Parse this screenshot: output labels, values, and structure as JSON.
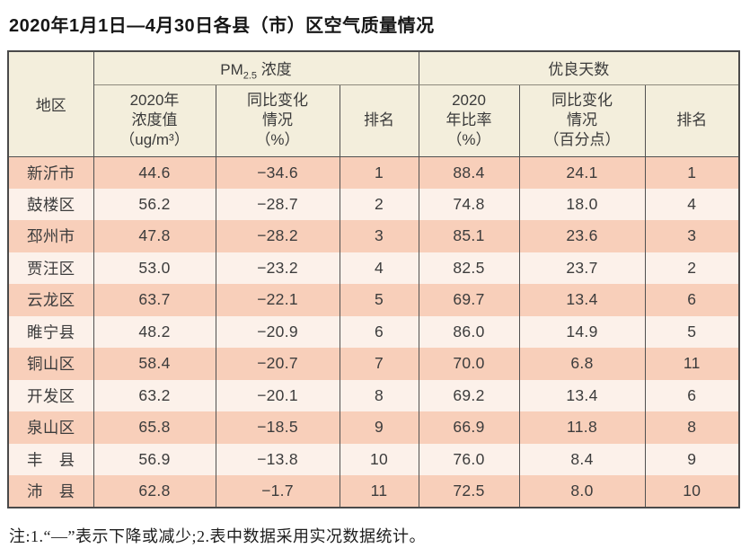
{
  "title": "2020年1月1日—4月30日各县（市）区空气质量情况",
  "table": {
    "header": {
      "region": "地区",
      "pm25_group": {
        "prefix": "PM",
        "sub": "2.5",
        "suffix": " 浓度"
      },
      "good_days_group": "优良天数"
    },
    "sub_headers": {
      "pm_value_l1": "2020年",
      "pm_value_l2": "浓度值",
      "pm_value_l3": "（ug/m³）",
      "pm_change_l1": "同比变化",
      "pm_change_l2": "情况",
      "pm_change_l3": "（%）",
      "pm_rank": "排名",
      "good_ratio_l1": "2020",
      "good_ratio_l2": "年比率",
      "good_ratio_l3": "（%）",
      "good_change_l1": "同比变化",
      "good_change_l2": "情况",
      "good_change_l3": "（百分点）",
      "good_rank": "排名"
    },
    "rows": [
      {
        "region": "新沂市",
        "pm_value": "44.6",
        "pm_change": "−34.6",
        "pm_rank": "1",
        "good_ratio": "88.4",
        "good_change": "24.1",
        "good_rank": "1"
      },
      {
        "region": "鼓楼区",
        "pm_value": "56.2",
        "pm_change": "−28.7",
        "pm_rank": "2",
        "good_ratio": "74.8",
        "good_change": "18.0",
        "good_rank": "4"
      },
      {
        "region": "邳州市",
        "pm_value": "47.8",
        "pm_change": "−28.2",
        "pm_rank": "3",
        "good_ratio": "85.1",
        "good_change": "23.6",
        "good_rank": "3"
      },
      {
        "region": "贾汪区",
        "pm_value": "53.0",
        "pm_change": "−23.2",
        "pm_rank": "4",
        "good_ratio": "82.5",
        "good_change": "23.7",
        "good_rank": "2"
      },
      {
        "region": "云龙区",
        "pm_value": "63.7",
        "pm_change": "−22.1",
        "pm_rank": "5",
        "good_ratio": "69.7",
        "good_change": "13.4",
        "good_rank": "6"
      },
      {
        "region": "睢宁县",
        "pm_value": "48.2",
        "pm_change": "−20.9",
        "pm_rank": "6",
        "good_ratio": "86.0",
        "good_change": "14.9",
        "good_rank": "5"
      },
      {
        "region": "铜山区",
        "pm_value": "58.4",
        "pm_change": "−20.7",
        "pm_rank": "7",
        "good_ratio": "70.0",
        "good_change": "6.8",
        "good_rank": "11"
      },
      {
        "region": "开发区",
        "pm_value": "63.2",
        "pm_change": "−20.1",
        "pm_rank": "8",
        "good_ratio": "69.2",
        "good_change": "13.4",
        "good_rank": "6"
      },
      {
        "region": "泉山区",
        "pm_value": "65.8",
        "pm_change": "−18.5",
        "pm_rank": "9",
        "good_ratio": "66.9",
        "good_change": "11.8",
        "good_rank": "8"
      },
      {
        "region": "丰　县",
        "pm_value": "56.9",
        "pm_change": "−13.8",
        "pm_rank": "10",
        "good_ratio": "76.0",
        "good_change": "8.4",
        "good_rank": "9"
      },
      {
        "region": "沛　县",
        "pm_value": "62.8",
        "pm_change": "−1.7",
        "pm_rank": "11",
        "good_ratio": "72.5",
        "good_change": "8.0",
        "good_rank": "10"
      }
    ]
  },
  "note": "注:1.“—”表示下降或减少;2.表中数据采用实况数据统计。",
  "colors": {
    "header_bg": "#f3eedc",
    "row_odd_bg": "#f8cfba",
    "row_even_bg": "#fcf1ea",
    "border": "#4a4a4a",
    "text": "#3c3c3c"
  }
}
